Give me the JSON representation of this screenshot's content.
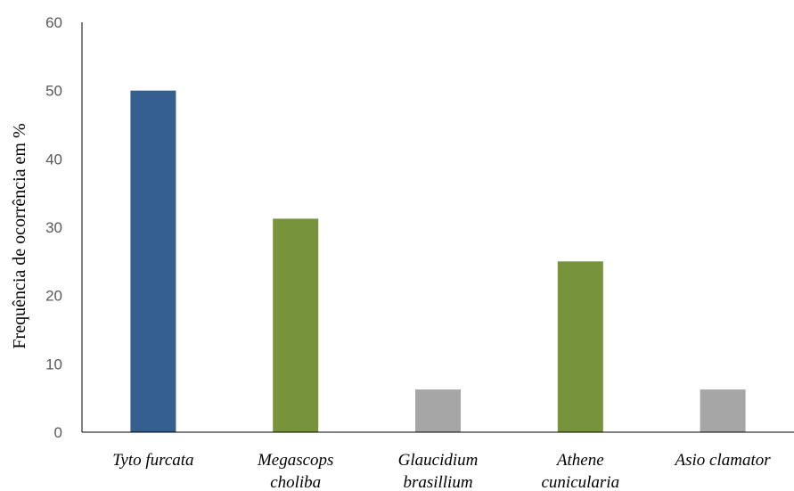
{
  "chart_data": {
    "type": "bar",
    "title": "",
    "xlabel": "",
    "ylabel": "Frequência de ocorrência em %",
    "ylim": [
      0,
      60
    ],
    "yticks": [
      0,
      10,
      20,
      30,
      40,
      50,
      60
    ],
    "grid": false,
    "legend": "none",
    "categories": [
      [
        "Tyto furcata"
      ],
      [
        "Megascops",
        "choliba"
      ],
      [
        "Glaucidium",
        "brasillium"
      ],
      [
        "Athene",
        "cunicularia"
      ],
      [
        "Asio clamator"
      ]
    ],
    "values": [
      50,
      31.25,
      6.25,
      25,
      6.25
    ],
    "colors": [
      "#355F8F",
      "#77933C",
      "#A6A6A6",
      "#77933C",
      "#A6A6A6"
    ]
  }
}
